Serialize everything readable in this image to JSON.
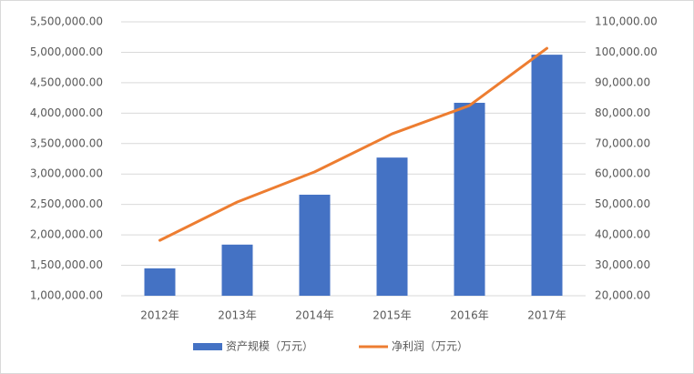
{
  "chart_data": {
    "type": "bar-line",
    "categories": [
      "2012年",
      "2013年",
      "2014年",
      "2015年",
      "2016年",
      "2017年"
    ],
    "series": [
      {
        "name": "资产规模（万元）",
        "type": "bar",
        "color": "#4472c4",
        "axis": "y",
        "values": [
          1450000,
          1840000,
          2660000,
          3270000,
          4170000,
          4960000
        ]
      },
      {
        "name": "净利润（万元）",
        "type": "line",
        "color": "#ed7d31",
        "axis": "y2",
        "values": [
          38200,
          50800,
          60700,
          73200,
          82500,
          101300
        ]
      }
    ],
    "ylim": [
      1000000,
      5500000
    ],
    "yticks": [
      {
        "value": 1000000,
        "label": "1,000,000.00"
      },
      {
        "value": 1500000,
        "label": "1,500,000.00"
      },
      {
        "value": 2000000,
        "label": "2,000,000.00"
      },
      {
        "value": 2500000,
        "label": "2,500,000.00"
      },
      {
        "value": 3000000,
        "label": "3,000,000.00"
      },
      {
        "value": 3500000,
        "label": "3,500,000.00"
      },
      {
        "value": 4000000,
        "label": "4,000,000.00"
      },
      {
        "value": 4500000,
        "label": "4,500,000.00"
      },
      {
        "value": 5000000,
        "label": "5,000,000.00"
      },
      {
        "value": 5500000,
        "label": "5,500,000.00"
      }
    ],
    "y2lim": [
      20000,
      110000
    ],
    "y2ticks": [
      {
        "value": 20000,
        "label": "20,000.00"
      },
      {
        "value": 30000,
        "label": "30,000.00"
      },
      {
        "value": 40000,
        "label": "40,000.00"
      },
      {
        "value": 50000,
        "label": "50,000.00"
      },
      {
        "value": 60000,
        "label": "60,000.00"
      },
      {
        "value": 70000,
        "label": "70,000.00"
      },
      {
        "value": 80000,
        "label": "80,000.00"
      },
      {
        "value": 90000,
        "label": "90,000.00"
      },
      {
        "value": 100000,
        "label": "100,000.00"
      },
      {
        "value": 110000,
        "label": "110,000.00"
      }
    ],
    "grid": true,
    "legend": "bottom"
  }
}
